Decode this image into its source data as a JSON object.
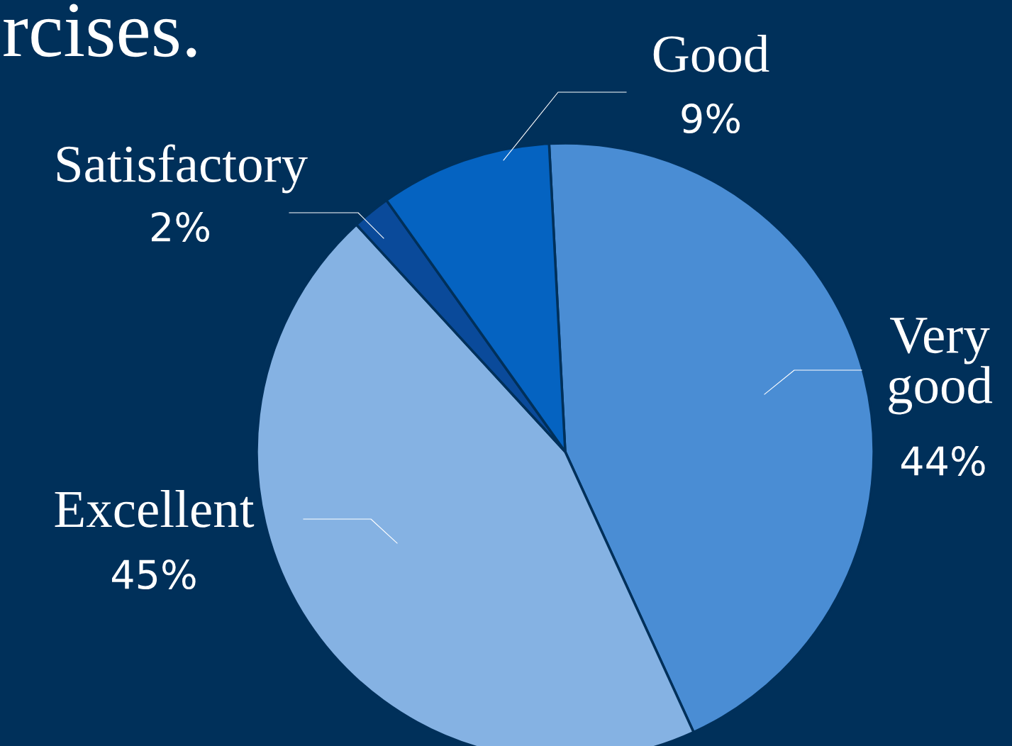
{
  "chart_data": {
    "type": "pie",
    "title": "rcises.",
    "categories": [
      "Very good",
      "Excellent",
      "Satisfactory",
      "Good"
    ],
    "values": [
      44,
      45,
      2,
      9
    ],
    "value_labels": [
      "44%",
      "45%",
      "2%",
      "9%"
    ],
    "colors": [
      "#4a8dd4",
      "#85b2e3",
      "#0a4a9a",
      "#0563c1"
    ],
    "legend": false
  }
}
